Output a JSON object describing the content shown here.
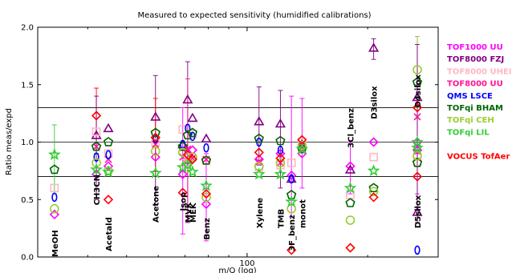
{
  "chart_data": {
    "type": "scatter",
    "title": "Measured to expected sensitivity (humidified calibrations)",
    "xlabel": "m/Q (log)",
    "ylabel": "Ratio meas/expd",
    "x_scale": "log",
    "xlim": [
      30,
      300
    ],
    "ylim": [
      0,
      2
    ],
    "yticks": [
      "0.0",
      "0.5",
      "1.0",
      "1.5",
      "2.0"
    ],
    "xticks": [
      {
        "value": 100,
        "label": "100"
      }
    ],
    "reference_lines": [
      0.7,
      1.0,
      1.3
    ],
    "compounds": [
      {
        "label": "MeOH",
        "x": 33.03,
        "y": 0.0
      },
      {
        "label": "CH3CN",
        "x": 42.03,
        "y": 0.45
      },
      {
        "label": "Acetald",
        "x": 45.03,
        "y": 0.05
      },
      {
        "label": "Acetone",
        "x": 59.05,
        "y": 0.3
      },
      {
        "label": "Isop",
        "x": 69.07,
        "y": 0.4
      },
      {
        "label": "MVK",
        "x": 71.05,
        "y": 0.3
      },
      {
        "label": "MEK",
        "x": 73.06,
        "y": 0.3
      },
      {
        "label": "Benz",
        "x": 79.05,
        "y": 0.15
      },
      {
        "label": "Xylene",
        "x": 107.09,
        "y": 0.25
      },
      {
        "label": "TMB",
        "x": 121.1,
        "y": 0.25
      },
      {
        "label": "3F_benz",
        "x": 129.03,
        "y": 0.05
      },
      {
        "label": "monot",
        "x": 137.13,
        "y": 0.25
      },
      {
        "label": "3Cl_benz",
        "x": 181.0,
        "y": 0.95
      },
      {
        "label": "D3silox",
        "x": 207.03,
        "y": 1.2
      },
      {
        "label": "D4silox",
        "x": 281.05,
        "y": 1.3
      },
      {
        "label": "D5silox",
        "x": 355.07,
        "y": 0.25
      }
    ],
    "series": [
      {
        "name": "TOF1000 UU",
        "color": "#ff00ff",
        "marker": "diamond"
      },
      {
        "name": "TOF8000 FZJ",
        "color": "#800080",
        "marker": "triangle"
      },
      {
        "name": "TOF8000 UHEI",
        "color": "#ffb6c1",
        "marker": "square"
      },
      {
        "name": "TOF8000 UU",
        "color": "#ff1493",
        "marker": "x"
      },
      {
        "name": "QMS LSCE",
        "color": "#0000ff",
        "marker": "ellipse"
      },
      {
        "name": "TOFqi BHAM",
        "color": "#006400",
        "marker": "pentagon"
      },
      {
        "name": "TOFqi CEH",
        "color": "#9acd32",
        "marker": "circle"
      },
      {
        "name": "TOFqi LIL",
        "color": "#32cd32",
        "marker": "star"
      },
      {
        "name": "VOCUS TofAer",
        "color": "#ff0000",
        "marker": "diamond"
      }
    ],
    "points": [
      {
        "s": 0,
        "c": 0,
        "y": 0.37
      },
      {
        "s": 2,
        "c": 0,
        "y": 0.6
      },
      {
        "s": 4,
        "c": 0,
        "y": 0.52
      },
      {
        "s": 5,
        "c": 0,
        "y": 0.76
      },
      {
        "s": 6,
        "c": 0,
        "y": 0.42
      },
      {
        "s": 7,
        "c": 0,
        "y": 0.89
      },
      {
        "s": 0,
        "c": 1,
        "y": 0.72
      },
      {
        "s": 1,
        "c": 1,
        "y": 1.06
      },
      {
        "s": 2,
        "c": 1,
        "y": 1.09
      },
      {
        "s": 3,
        "c": 1,
        "y": 0.96
      },
      {
        "s": 4,
        "c": 1,
        "y": 0.87
      },
      {
        "s": 5,
        "c": 1,
        "y": 0.96
      },
      {
        "s": 6,
        "c": 1,
        "y": 0.82
      },
      {
        "s": 7,
        "c": 1,
        "y": 0.76
      },
      {
        "s": 8,
        "c": 1,
        "y": 1.23
      },
      {
        "s": 0,
        "c": 2,
        "y": 0.79
      },
      {
        "s": 1,
        "c": 2,
        "y": 1.12
      },
      {
        "s": 2,
        "c": 2,
        "y": 0.9
      },
      {
        "s": 3,
        "c": 2,
        "y": 0.85
      },
      {
        "s": 4,
        "c": 2,
        "y": 0.89
      },
      {
        "s": 5,
        "c": 2,
        "y": 1.0
      },
      {
        "s": 6,
        "c": 2,
        "y": 0.75
      },
      {
        "s": 7,
        "c": 2,
        "y": 0.74
      },
      {
        "s": 8,
        "c": 2,
        "y": 0.5
      },
      {
        "s": 0,
        "c": 3,
        "y": 0.87
      },
      {
        "s": 1,
        "c": 3,
        "y": 1.22
      },
      {
        "s": 2,
        "c": 3,
        "y": 1.0
      },
      {
        "s": 3,
        "c": 3,
        "y": 0.98
      },
      {
        "s": 4,
        "c": 3,
        "y": 1.03
      },
      {
        "s": 5,
        "c": 3,
        "y": 1.08
      },
      {
        "s": 6,
        "c": 3,
        "y": 0.92
      },
      {
        "s": 7,
        "c": 3,
        "y": 0.73
      },
      {
        "s": 8,
        "c": 3,
        "y": 1.04
      },
      {
        "s": 0,
        "c": 4,
        "y": 0.72
      },
      {
        "s": 1,
        "c": 4,
        "y": 0.98
      },
      {
        "s": 2,
        "c": 4,
        "y": 1.11
      },
      {
        "s": 3,
        "c": 4,
        "y": 0.87
      },
      {
        "s": 4,
        "c": 4,
        "y": 0.98
      },
      {
        "s": 5,
        "c": 4,
        "y": 0.96
      },
      {
        "s": 6,
        "c": 4,
        "y": 0.91
      },
      {
        "s": 7,
        "c": 4,
        "y": 0.78
      },
      {
        "s": 8,
        "c": 4,
        "y": 0.56
      },
      {
        "s": 0,
        "c": 5,
        "y": 0.84
      },
      {
        "s": 1,
        "c": 5,
        "y": 1.37
      },
      {
        "s": 2,
        "c": 5,
        "y": 0.82
      },
      {
        "s": 3,
        "c": 5,
        "y": 0.94
      },
      {
        "s": 4,
        "c": 5,
        "y": 1.12
      },
      {
        "s": 5,
        "c": 5,
        "y": 1.06
      },
      {
        "s": 6,
        "c": 5,
        "y": 0.81
      },
      {
        "s": 7,
        "c": 5,
        "y": 0.8
      },
      {
        "s": 8,
        "c": 5,
        "y": 0.89
      },
      {
        "s": 0,
        "c": 6,
        "y": 0.93
      },
      {
        "s": 1,
        "c": 6,
        "y": 1.21
      },
      {
        "s": 2,
        "c": 6,
        "y": 1.07
      },
      {
        "s": 3,
        "c": 6,
        "y": 0.86
      },
      {
        "s": 4,
        "c": 6,
        "y": 1.05
      },
      {
        "s": 5,
        "c": 6,
        "y": 1.08
      },
      {
        "s": 6,
        "c": 6,
        "y": 0.87
      },
      {
        "s": 7,
        "c": 6,
        "y": 0.74
      },
      {
        "s": 8,
        "c": 6,
        "y": 0.85
      },
      {
        "s": 0,
        "c": 7,
        "y": 0.46
      },
      {
        "s": 1,
        "c": 7,
        "y": 1.03
      },
      {
        "s": 2,
        "c": 7,
        "y": 0.84
      },
      {
        "s": 3,
        "c": 7,
        "y": 0.85
      },
      {
        "s": 4,
        "c": 7,
        "y": 0.95
      },
      {
        "s": 5,
        "c": 7,
        "y": 0.84
      },
      {
        "s": 6,
        "c": 7,
        "y": 0.52
      },
      {
        "s": 7,
        "c": 7,
        "y": 0.62
      },
      {
        "s": 8,
        "c": 7,
        "y": 0.55
      },
      {
        "s": 0,
        "c": 8,
        "y": 0.85
      },
      {
        "s": 1,
        "c": 8,
        "y": 1.18
      },
      {
        "s": 2,
        "c": 8,
        "y": 0.78
      },
      {
        "s": 3,
        "c": 8,
        "y": 0.83
      },
      {
        "s": 4,
        "c": 8,
        "y": 1.0
      },
      {
        "s": 5,
        "c": 8,
        "y": 1.03
      },
      {
        "s": 6,
        "c": 8,
        "y": 0.79
      },
      {
        "s": 7,
        "c": 8,
        "y": 0.72
      },
      {
        "s": 8,
        "c": 8,
        "y": 0.91
      },
      {
        "s": 0,
        "c": 9,
        "y": 0.9
      },
      {
        "s": 1,
        "c": 9,
        "y": 1.16
      },
      {
        "s": 2,
        "c": 9,
        "y": 0.8
      },
      {
        "s": 3,
        "c": 9,
        "y": 0.82
      },
      {
        "s": 4,
        "c": 9,
        "y": 0.93
      },
      {
        "s": 5,
        "c": 9,
        "y": 1.01
      },
      {
        "s": 6,
        "c": 9,
        "y": 0.82
      },
      {
        "s": 7,
        "c": 9,
        "y": 0.72
      },
      {
        "s": 8,
        "c": 9,
        "y": 0.86
      },
      {
        "s": 0,
        "c": 10,
        "y": 0.71
      },
      {
        "s": 1,
        "c": 10,
        "y": 0.68
      },
      {
        "s": 2,
        "c": 10,
        "y": 0.82
      },
      {
        "s": 4,
        "c": 10,
        "y": 0.68
      },
      {
        "s": 5,
        "c": 10,
        "y": 0.54
      },
      {
        "s": 6,
        "c": 10,
        "y": 0.42
      },
      {
        "s": 7,
        "c": 10,
        "y": 0.48
      },
      {
        "s": 8,
        "c": 10,
        "y": 0.06
      },
      {
        "s": 0,
        "c": 11,
        "y": 0.9
      },
      {
        "s": 1,
        "c": 11,
        "y": 0.98
      },
      {
        "s": 2,
        "c": 11,
        "y": 1.0
      },
      {
        "s": 3,
        "c": 11,
        "y": 0.96
      },
      {
        "s": 5,
        "c": 11,
        "y": 0.94
      },
      {
        "s": 6,
        "c": 11,
        "y": 0.97
      },
      {
        "s": 7,
        "c": 11,
        "y": 0.94
      },
      {
        "s": 8,
        "c": 11,
        "y": 1.02
      },
      {
        "s": 0,
        "c": 12,
        "y": 0.79
      },
      {
        "s": 1,
        "c": 12,
        "y": 0.76
      },
      {
        "s": 2,
        "c": 12,
        "y": 0.54
      },
      {
        "s": 5,
        "c": 12,
        "y": 0.47
      },
      {
        "s": 6,
        "c": 12,
        "y": 0.32
      },
      {
        "s": 7,
        "c": 12,
        "y": 0.6
      },
      {
        "s": 8,
        "c": 12,
        "y": 0.08
      },
      {
        "s": 0,
        "c": 13,
        "y": 1.0
      },
      {
        "s": 1,
        "c": 13,
        "y": 1.82
      },
      {
        "s": 2,
        "c": 13,
        "y": 0.87
      },
      {
        "s": 5,
        "c": 13,
        "y": 0.6
      },
      {
        "s": 6,
        "c": 13,
        "y": 0.57
      },
      {
        "s": 7,
        "c": 13,
        "y": 0.75
      },
      {
        "s": 8,
        "c": 13,
        "y": 0.52
      },
      {
        "s": 0,
        "c": 14,
        "y": 0.93
      },
      {
        "s": 1,
        "c": 14,
        "y": 1.39
      },
      {
        "s": 2,
        "c": 14,
        "y": 0.83
      },
      {
        "s": 3,
        "c": 14,
        "y": 0.92
      },
      {
        "s": 4,
        "c": 14,
        "y": 0.06
      },
      {
        "s": 5,
        "c": 14,
        "y": 0.82
      },
      {
        "s": 6,
        "c": 14,
        "y": 0.88
      },
      {
        "s": 7,
        "c": 14,
        "y": 0.95
      },
      {
        "s": 8,
        "c": 14,
        "y": 0.7
      },
      {
        "s": 0,
        "c": 15,
        "y": 1.0
      },
      {
        "s": 1,
        "c": 15,
        "y": 0.39
      },
      {
        "s": 3,
        "c": 15,
        "y": 1.22
      },
      {
        "s": 5,
        "c": 15,
        "y": 1.52
      },
      {
        "s": 6,
        "c": 15,
        "y": 1.63
      },
      {
        "s": 7,
        "c": 15,
        "y": 1.0
      },
      {
        "s": 8,
        "c": 15,
        "y": 1.3
      }
    ],
    "errorbars": [
      {
        "c": 0,
        "color": "#32cd32",
        "lo": 0.55,
        "hi": 1.15
      },
      {
        "c": 1,
        "color": "#ff0000",
        "lo": 0.9,
        "hi": 1.47
      },
      {
        "c": 1,
        "color": "#800080",
        "lo": 0.5,
        "hi": 1.4
      },
      {
        "c": 3,
        "color": "#800080",
        "lo": 0.45,
        "hi": 1.58
      },
      {
        "c": 3,
        "color": "#ff0000",
        "lo": 0.75,
        "hi": 1.38
      },
      {
        "c": 4,
        "color": "#ff00ff",
        "lo": 0.2,
        "hi": 1.3
      },
      {
        "c": 5,
        "color": "#800080",
        "lo": 0.3,
        "hi": 1.7
      },
      {
        "c": 5,
        "color": "#ff1493",
        "lo": 0.35,
        "hi": 1.55
      },
      {
        "c": 7,
        "color": "#ff00ff",
        "lo": 0.14,
        "hi": 0.9
      },
      {
        "c": 8,
        "color": "#800080",
        "lo": 0.8,
        "hi": 1.48
      },
      {
        "c": 9,
        "color": "#800080",
        "lo": 0.6,
        "hi": 1.45
      },
      {
        "c": 10,
        "color": "#ff00ff",
        "lo": 0.35,
        "hi": 1.4
      },
      {
        "c": 11,
        "color": "#ff00ff",
        "lo": 0.6,
        "hi": 1.38
      },
      {
        "c": 12,
        "color": "#ff00ff",
        "lo": 0.55,
        "hi": 1.0
      },
      {
        "c": 13,
        "color": "#800080",
        "lo": 1.72,
        "hi": 1.9
      },
      {
        "c": 14,
        "color": "#800080",
        "lo": 0.7,
        "hi": 1.92
      },
      {
        "c": 15,
        "color": "#9acd32",
        "lo": 1.3,
        "hi": 1.92
      },
      {
        "c": 15,
        "color": "#ff00ff",
        "lo": 0.55,
        "hi": 1.5
      },
      {
        "c": 15,
        "color": "#800080",
        "lo": 0.3,
        "hi": 1.85
      }
    ]
  }
}
